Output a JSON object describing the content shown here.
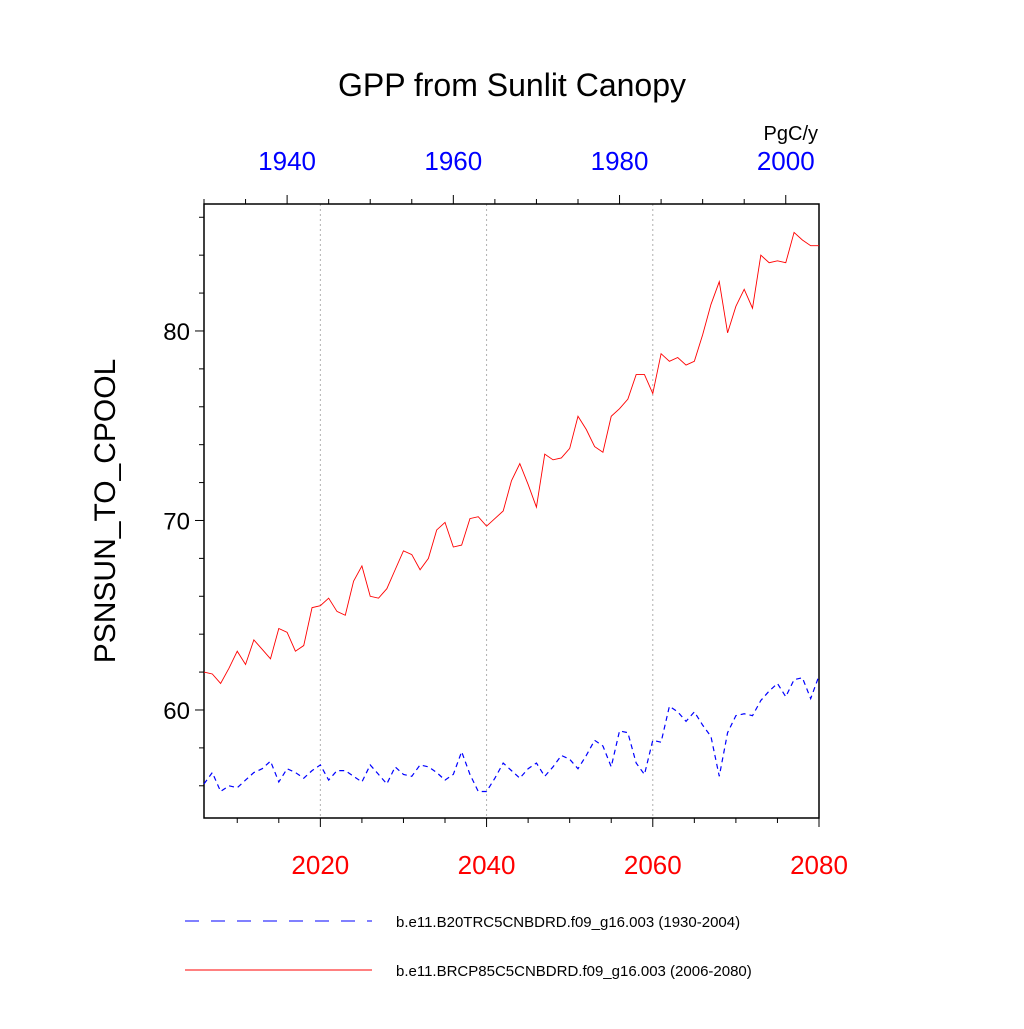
{
  "chart_data": {
    "type": "line",
    "title": "GPP from Sunlit Canopy",
    "ylabel": "PSNSUN_TO_CPOOL",
    "units": "PgC/y",
    "ylim": [
      54.3,
      86.7
    ],
    "y_ticks": [
      60,
      70,
      80
    ],
    "bottom_axis": {
      "range": [
        2006,
        2080
      ],
      "ticks": [
        2020,
        2040,
        2060,
        2080
      ],
      "color": "#ff0000"
    },
    "top_axis": {
      "range": [
        1930,
        2004
      ],
      "ticks": [
        1940,
        1960,
        1980,
        2000
      ],
      "color": "#0000ff"
    },
    "grid": "vertical dotted at bottom-axis ticks",
    "legend_position": "bottom",
    "series": [
      {
        "name": "b.e11.BRCP85C5CNBDRD.f09_g16.003 (2006-2080)",
        "label": "b.e11.BRCP85C5CNBDRD.f09_g16.003 (2006-2080)",
        "axis": "bottom",
        "color": "#ff0000",
        "style": "solid",
        "x": [
          2006,
          2007,
          2008,
          2009,
          2010,
          2011,
          2012,
          2013,
          2014,
          2015,
          2016,
          2017,
          2018,
          2019,
          2020,
          2021,
          2022,
          2023,
          2024,
          2025,
          2026,
          2027,
          2028,
          2029,
          2030,
          2031,
          2032,
          2033,
          2034,
          2035,
          2036,
          2037,
          2038,
          2039,
          2040,
          2041,
          2042,
          2043,
          2044,
          2045,
          2046,
          2047,
          2048,
          2049,
          2050,
          2051,
          2052,
          2053,
          2054,
          2055,
          2056,
          2057,
          2058,
          2059,
          2060,
          2061,
          2062,
          2063,
          2064,
          2065,
          2066,
          2067,
          2068,
          2069,
          2070,
          2071,
          2072,
          2073,
          2074,
          2075,
          2076,
          2077,
          2078,
          2079,
          2080
        ],
        "values": [
          62.0,
          61.9,
          61.4,
          62.2,
          63.1,
          62.4,
          63.7,
          63.2,
          62.7,
          64.3,
          64.1,
          63.1,
          63.4,
          65.4,
          65.5,
          65.9,
          65.2,
          65.0,
          66.8,
          67.6,
          66.0,
          65.9,
          66.4,
          67.4,
          68.4,
          68.2,
          67.4,
          68.0,
          69.5,
          69.9,
          68.6,
          68.7,
          70.1,
          70.2,
          69.7,
          70.1,
          70.5,
          72.1,
          73.0,
          71.9,
          70.7,
          73.5,
          73.2,
          73.3,
          73.8,
          75.5,
          74.8,
          73.9,
          73.6,
          75.5,
          75.9,
          76.4,
          77.7,
          77.7,
          76.7,
          78.8,
          78.4,
          78.6,
          78.2,
          78.4,
          79.8,
          81.4,
          82.6,
          79.9,
          81.3,
          82.2,
          81.2,
          84.0,
          83.6,
          83.7,
          83.6,
          85.2,
          84.8,
          84.5,
          84.5
        ]
      },
      {
        "name": "b.e11.B20TRC5CNBDRD.f09_g16.003 (1930-2004)",
        "label": "b.e11.B20TRC5CNBDRD.f09_g16.003 (1930-2004)",
        "axis": "top",
        "color": "#0000ff",
        "style": "dashed",
        "x": [
          1930,
          1931,
          1932,
          1933,
          1934,
          1935,
          1936,
          1937,
          1938,
          1939,
          1940,
          1941,
          1942,
          1943,
          1944,
          1945,
          1946,
          1947,
          1948,
          1949,
          1950,
          1951,
          1952,
          1953,
          1954,
          1955,
          1956,
          1957,
          1958,
          1959,
          1960,
          1961,
          1962,
          1963,
          1964,
          1965,
          1966,
          1967,
          1968,
          1969,
          1970,
          1971,
          1972,
          1973,
          1974,
          1975,
          1976,
          1977,
          1978,
          1979,
          1980,
          1981,
          1982,
          1983,
          1984,
          1985,
          1986,
          1987,
          1988,
          1989,
          1990,
          1991,
          1992,
          1993,
          1994,
          1995,
          1996,
          1997,
          1998,
          1999,
          2000,
          2001,
          2002,
          2003,
          2004
        ],
        "values": [
          56.1,
          56.7,
          55.7,
          56.0,
          55.9,
          56.3,
          56.7,
          56.9,
          57.3,
          56.2,
          56.9,
          56.7,
          56.4,
          56.8,
          57.1,
          56.3,
          56.8,
          56.8,
          56.5,
          56.2,
          57.1,
          56.6,
          56.1,
          57.0,
          56.6,
          56.5,
          57.1,
          57.0,
          56.7,
          56.3,
          56.6,
          57.8,
          56.6,
          55.7,
          55.7,
          56.4,
          57.2,
          56.8,
          56.4,
          56.9,
          57.2,
          56.5,
          57.0,
          57.6,
          57.4,
          56.9,
          57.6,
          58.4,
          58.1,
          57.0,
          58.9,
          58.8,
          57.2,
          56.6,
          58.4,
          58.3,
          60.2,
          59.9,
          59.4,
          59.9,
          59.2,
          58.6,
          56.5,
          58.8,
          59.7,
          59.8,
          59.7,
          60.5,
          61.0,
          61.4,
          60.7,
          61.6,
          61.7,
          60.6,
          61.8
        ]
      }
    ]
  }
}
